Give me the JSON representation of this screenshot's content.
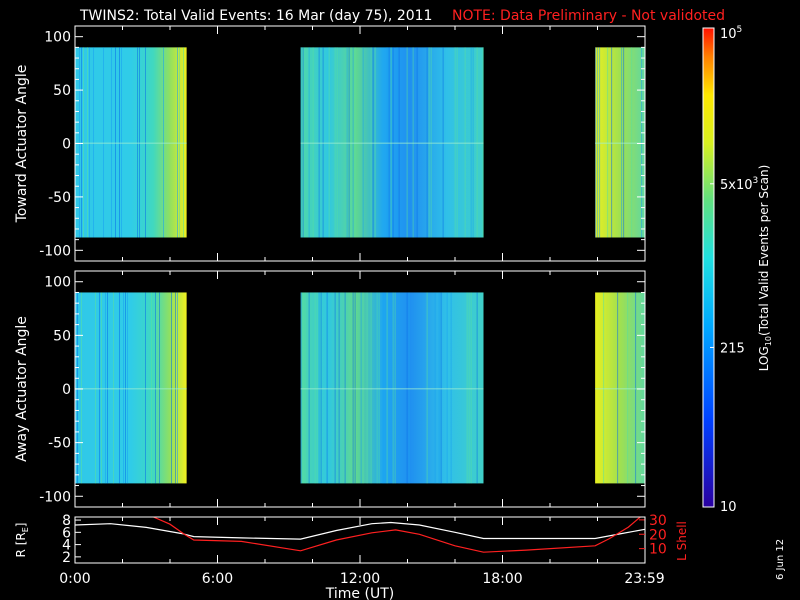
{
  "header": {
    "title": "TWINS2: Total Valid Events: 16 Mar (day  75), 2011",
    "note": "NOTE: Data Preliminary - Not validoted"
  },
  "stamp": "6 Jun 12",
  "colors": {
    "background": "#000000",
    "axis": "#ffffff",
    "note": "#ff2020",
    "r_line": "#ffffff",
    "lshell_line": "#ff2020"
  },
  "chart_data": [
    {
      "type": "heatmap",
      "panel": "top",
      "ylabel": "Toward Actuator Angle",
      "ylim": [
        -110,
        110
      ],
      "yticks": [
        -100,
        -50,
        0,
        50,
        100
      ],
      "xlim_hours": [
        0,
        24
      ],
      "data_y_range": [
        -88,
        90
      ],
      "data_blocks_hours": [
        [
          0,
          4.7
        ],
        [
          9.5,
          17.2
        ],
        [
          21.9,
          24
        ]
      ],
      "grid": false
    },
    {
      "type": "heatmap",
      "panel": "middle",
      "ylabel": "Away Actuator Angle",
      "ylim": [
        -110,
        110
      ],
      "yticks": [
        -100,
        -50,
        0,
        50,
        100
      ],
      "xlim_hours": [
        0,
        24
      ],
      "data_y_range": [
        -88,
        90
      ],
      "data_blocks_hours": [
        [
          0,
          4.7
        ],
        [
          9.5,
          17.2
        ],
        [
          21.9,
          24
        ]
      ],
      "grid": false
    },
    {
      "type": "line",
      "panel": "bottom",
      "ylabel_left": "R [R",
      "ylabel_left_sub": "E",
      "ylabel_left_end": "]",
      "ylabel_right": "L Shell",
      "yticks_left": [
        2,
        4,
        6,
        8
      ],
      "yticks_right": [
        10,
        20,
        30
      ],
      "ylim_left": [
        1,
        8.5
      ],
      "ylim_right": [
        0,
        32
      ],
      "xlabel": "Time (UT)",
      "xtick_labels": [
        "0:00",
        "6:00",
        "12:00",
        "18:00",
        "23:59"
      ],
      "xtick_hours": [
        0,
        6,
        12,
        18,
        23.98
      ],
      "series": [
        {
          "axis": "left",
          "x": [
            0,
            1.5,
            3,
            4.5,
            5,
            7,
            9.5,
            11,
            12.5,
            13.3,
            14.5,
            16,
            17.2,
            19,
            21.9,
            23,
            24
          ],
          "values": [
            7.2,
            7.4,
            6.8,
            5.8,
            5.3,
            5.1,
            4.9,
            6.3,
            7.4,
            7.6,
            7.2,
            6.0,
            5.0,
            5.0,
            5.0,
            5.8,
            6.5
          ]
        },
        {
          "axis": "right",
          "x": [
            3.3,
            4,
            4.6,
            5,
            7,
            9.5,
            11,
            12.5,
            13.5,
            14.5,
            16,
            17.2,
            19,
            21.9,
            22.5,
            23.3,
            23.8
          ],
          "values": [
            32,
            27,
            20,
            16,
            15,
            8.5,
            16,
            21,
            23,
            20,
            12,
            7.5,
            9,
            12,
            17,
            25,
            32
          ]
        }
      ]
    },
    {
      "type": "colorbar",
      "label": "LOG",
      "label_sub": "10",
      "label_end": "(Total Valid  Events per Scan)",
      "scale": "log",
      "range": [
        10,
        100000
      ],
      "tick_values": [
        10,
        215,
        5000,
        100000
      ],
      "tick_labels": [
        {
          "base": "10",
          "exp": ""
        },
        {
          "base": "215",
          "exp": ""
        },
        {
          "base": "5x10",
          "exp": "3"
        },
        {
          "base": "10",
          "exp": "5"
        }
      ]
    }
  ]
}
